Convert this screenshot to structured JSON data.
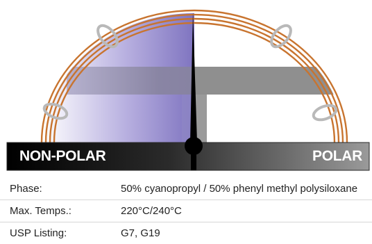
{
  "polarity_scale": {
    "left_label": "NON-POLAR",
    "right_label": "POLAR",
    "position_percent": 52,
    "colors": {
      "coil": "#c8742f",
      "nonpolar_fill": "#8a7fc6",
      "polar_fill": "#8c8c8c",
      "needle": "#000000"
    }
  },
  "specs": [
    {
      "label": "Phase:",
      "value": "50% cyanopropyl / 50% phenyl methyl polysiloxane"
    },
    {
      "label": "Max. Temps.:",
      "value": "220°C/240°C"
    },
    {
      "label": "USP Listing:",
      "value": "G7, G19"
    }
  ]
}
